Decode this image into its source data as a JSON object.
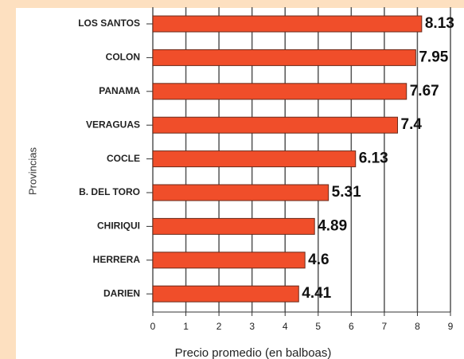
{
  "chart_data": {
    "type": "barh",
    "categories": [
      "LOS SANTOS",
      "COLON",
      "PANAMA",
      "VERAGUAS",
      "COCLE",
      "B. DEL TORO",
      "CHIRIQUI",
      "HERRERA",
      "DARIEN"
    ],
    "values": [
      8.13,
      7.95,
      7.67,
      7.4,
      6.13,
      5.31,
      4.89,
      4.6,
      4.41
    ],
    "color": "#f04e2a",
    "xlabel": "Precio promedio (en balboas)",
    "ylabel": "Provincias",
    "xlim": [
      0,
      9
    ],
    "xticks": [
      0,
      1,
      2,
      3,
      4,
      5,
      6,
      7,
      8,
      9
    ],
    "grid": true
  }
}
